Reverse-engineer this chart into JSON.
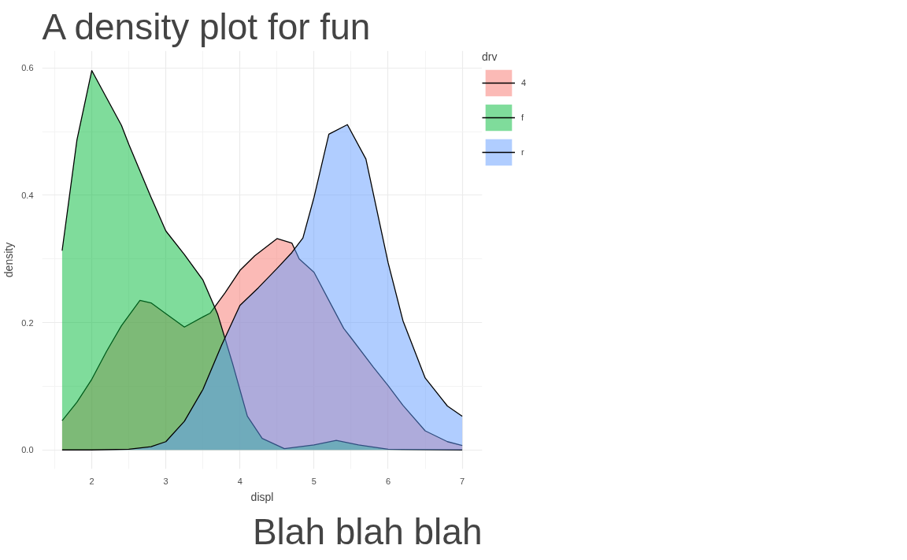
{
  "chart_data": {
    "type": "area",
    "title": "A density plot for fun",
    "xlabel": "displ",
    "ylabel": "density",
    "legend_title": "drv",
    "annotations": [
      "Blah blah blah"
    ],
    "series": [
      {
        "name": "4",
        "color": "#f8766d",
        "x": [
          1.6,
          1.8,
          2.0,
          2.2,
          2.4,
          2.65,
          2.8,
          3.0,
          3.25,
          3.5,
          3.6,
          3.8,
          4.0,
          4.2,
          4.5,
          4.7,
          4.8,
          5.0,
          5.2,
          5.4,
          5.5,
          5.8,
          6.0,
          6.2,
          6.5,
          6.8,
          7.0
        ],
        "values": [
          0.046,
          0.075,
          0.111,
          0.155,
          0.195,
          0.235,
          0.231,
          0.214,
          0.193,
          0.209,
          0.215,
          0.247,
          0.282,
          0.305,
          0.332,
          0.325,
          0.3,
          0.279,
          0.235,
          0.191,
          0.176,
          0.13,
          0.101,
          0.07,
          0.03,
          0.013,
          0.007
        ]
      },
      {
        "name": "f",
        "color": "#00ba38",
        "x": [
          1.6,
          1.8,
          2.0,
          2.2,
          2.4,
          2.5,
          2.8,
          3.0,
          3.25,
          3.5,
          3.7,
          3.9,
          4.1,
          4.3,
          4.6,
          5.0,
          5.3,
          5.6,
          6.0,
          7.0
        ],
        "values": [
          0.313,
          0.487,
          0.596,
          0.553,
          0.51,
          0.48,
          0.397,
          0.344,
          0.307,
          0.267,
          0.213,
          0.136,
          0.053,
          0.018,
          0.002,
          0.008,
          0.015,
          0.008,
          0.001,
          0
        ]
      },
      {
        "name": "r",
        "color": "#619cff",
        "x": [
          1.6,
          2.0,
          2.5,
          2.8,
          3.0,
          3.25,
          3.5,
          3.75,
          4.0,
          4.25,
          4.5,
          4.7,
          4.85,
          5.0,
          5.2,
          5.45,
          5.7,
          6.0,
          6.2,
          6.5,
          6.8,
          7.0
        ],
        "values": [
          0,
          0,
          0.001,
          0.005,
          0.013,
          0.045,
          0.095,
          0.164,
          0.227,
          0.255,
          0.285,
          0.31,
          0.333,
          0.397,
          0.496,
          0.511,
          0.457,
          0.294,
          0.203,
          0.113,
          0.069,
          0.053
        ]
      }
    ],
    "xlim": [
      1.33,
      7.27
    ],
    "ylim": [
      -0.03,
      0.627
    ],
    "xticks": [
      2,
      3,
      4,
      5,
      6,
      7
    ],
    "yticks": [
      {
        "value": 0,
        "label": "0.0"
      },
      0.2,
      0.4,
      0.6
    ],
    "grid": true,
    "legend": "right"
  }
}
